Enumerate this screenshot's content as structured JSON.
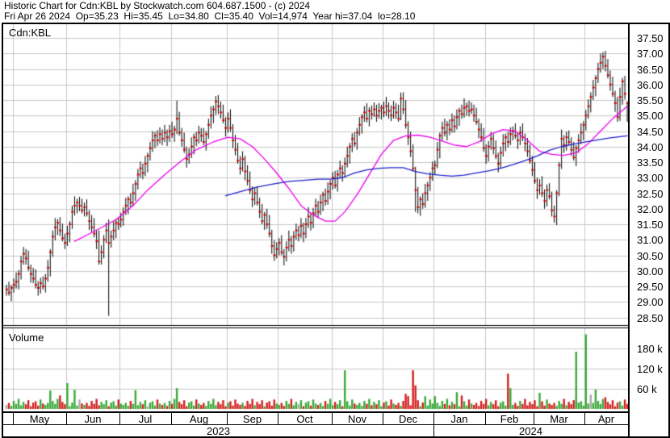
{
  "header": {
    "line1": "Historic Chart for Cdn:KBL by Stockwatch.com 604.687.1500 - (c) 2024",
    "line2": "Fri Apr 26 2024  Op=35.23  Hi=35.45  Lo=34.80  Cl=35.40  Vol=14,974  Year hi=37.04  lo=28.10"
  },
  "price_pane": {
    "symbol_label": "Cdn:KBL",
    "axis_labels": [
      "37.50",
      "37.00",
      "36.50",
      "36.00",
      "35.50",
      "35.00",
      "34.50",
      "34.00",
      "33.50",
      "33.00",
      "32.50",
      "32.00",
      "31.50",
      "31.00",
      "30.50",
      "30.00",
      "29.50",
      "29.00",
      "28.50"
    ]
  },
  "volume_pane": {
    "label": "Volume",
    "axis_labels": [
      "180 k",
      "120 k",
      "60 k"
    ]
  },
  "x_axis": {
    "months": [
      "May",
      "Jun",
      "Jul",
      "Aug",
      "Sep",
      "Oct",
      "Nov",
      "Dec",
      "Jan",
      "Feb",
      "Mar",
      "Apr"
    ],
    "years": [
      "2023",
      "2024"
    ]
  },
  "colors": {
    "bar": "#000000",
    "close_tick": "#dd0000",
    "ma_fast": "#ee00ee",
    "ma_slow": "#2020cc",
    "vol_up": "#3aaa3a",
    "vol_down": "#d42020",
    "vol_flat": "#aaaaaa",
    "grid": "#c8c8c8",
    "border": "#000000",
    "background": "#ffffff"
  },
  "chart_data": {
    "type": "bar",
    "subtype": "hlc-price-bars-with-volume",
    "symbol": "Cdn:KBL",
    "title": "Historic Chart for Cdn:KBL by Stockwatch.com 604.687.1500 - (c) 2024",
    "last_day": {
      "date": "Fri Apr 26 2024",
      "open": 35.23,
      "high": 35.45,
      "low": 34.8,
      "close": 35.4,
      "volume": 14974,
      "year_high": 37.04,
      "year_low": 28.1
    },
    "price_axis": {
      "min": 28.5,
      "max": 37.5,
      "step": 0.5
    },
    "volume_axis_ticks_k": [
      60,
      120,
      180
    ],
    "month_start_indices": [
      3,
      25,
      47,
      68,
      91,
      112,
      134,
      155,
      176,
      197,
      217,
      238
    ],
    "year_split_month": 8,
    "closes": [
      29.4,
      29.3,
      29.45,
      29.55,
      29.65,
      29.9,
      30.3,
      30.55,
      30.4,
      30.1,
      29.9,
      29.75,
      29.55,
      29.45,
      29.6,
      29.5,
      29.75,
      30.1,
      30.6,
      31.1,
      31.4,
      31.55,
      31.3,
      31.05,
      30.9,
      31.2,
      31.5,
      31.9,
      32.1,
      32.2,
      32.1,
      31.95,
      32.05,
      31.85,
      31.6,
      31.4,
      31.2,
      30.95,
      30.3,
      30.6,
      31.0,
      31.3,
      30.9,
      31.1,
      31.3,
      31.55,
      31.5,
      31.65,
      31.9,
      32.1,
      32.3,
      32.2,
      32.5,
      32.8,
      33.1,
      33.3,
      33.15,
      33.45,
      33.7,
      33.95,
      34.2,
      34.35,
      34.2,
      34.4,
      34.25,
      34.45,
      34.3,
      34.5,
      34.4,
      34.55,
      34.9,
      34.45,
      34.2,
      33.9,
      33.6,
      33.75,
      34.0,
      34.3,
      34.2,
      34.45,
      34.35,
      34.15,
      34.4,
      34.7,
      35.0,
      35.2,
      35.45,
      35.3,
      35.1,
      34.85,
      34.6,
      34.9,
      34.6,
      34.2,
      33.9,
      33.55,
      33.3,
      33.6,
      33.2,
      32.9,
      32.6,
      32.3,
      32.5,
      32.2,
      31.9,
      31.6,
      31.8,
      31.5,
      31.2,
      30.8,
      30.5,
      30.7,
      30.9,
      30.6,
      30.45,
      30.75,
      31.0,
      30.8,
      31.1,
      31.3,
      31.15,
      31.45,
      31.2,
      31.5,
      31.75,
      31.55,
      31.85,
      32.1,
      31.9,
      32.2,
      32.45,
      32.25,
      32.55,
      32.8,
      33.0,
      32.75,
      33.1,
      33.3,
      33.15,
      33.45,
      33.7,
      34.0,
      34.25,
      34.1,
      34.45,
      34.7,
      34.95,
      35.1,
      34.9,
      35.15,
      35.05,
      35.2,
      35.0,
      35.15,
      35.25,
      35.1,
      35.3,
      35.15,
      35.0,
      35.25,
      35.1,
      34.9,
      35.55,
      35.2,
      34.7,
      34.3,
      33.85,
      33.3,
      32.6,
      32.05,
      32.3,
      32.15,
      32.5,
      32.75,
      33.0,
      33.3,
      33.4,
      33.9,
      34.35,
      34.6,
      34.45,
      34.7,
      34.55,
      34.85,
      34.65,
      34.95,
      35.15,
      35.05,
      35.25,
      35.3,
      35.15,
      35.2,
      35.0,
      34.8,
      34.55,
      34.3,
      33.95,
      33.7,
      34.0,
      34.25,
      33.95,
      33.7,
      33.45,
      33.8,
      34.1,
      34.3,
      34.15,
      34.4,
      34.5,
      34.35,
      34.2,
      34.45,
      34.3,
      34.1,
      33.85,
      33.55,
      33.25,
      32.9,
      32.6,
      32.75,
      32.5,
      32.25,
      32.6,
      32.4,
      31.95,
      31.75,
      32.5,
      33.4,
      34.25,
      34.05,
      34.3,
      34.15,
      33.9,
      33.65,
      33.95,
      34.2,
      34.45,
      34.7,
      35.0,
      35.3,
      35.6,
      35.9,
      36.2,
      36.5,
      36.7,
      36.9,
      36.6,
      36.3,
      36.0,
      35.7,
      35.4,
      34.95,
      35.6,
      36.1,
      35.7,
      35.4
    ],
    "special_bars": {
      "38": [
        31.1,
        31.3,
        30.2,
        30.3
      ],
      "42": [
        31.3,
        31.65,
        28.55,
        30.9
      ],
      "70": [
        34.55,
        35.48,
        34.4,
        34.9
      ],
      "87": [
        35.45,
        35.66,
        35.05,
        35.3
      ],
      "162": [
        34.9,
        35.74,
        34.85,
        35.55
      ],
      "168": [
        33.3,
        33.35,
        31.9,
        32.6
      ],
      "169": [
        32.6,
        32.7,
        31.85,
        32.05
      ],
      "225": [
        31.95,
        32.1,
        31.55,
        31.75
      ],
      "227": [
        32.5,
        33.5,
        32.4,
        33.4
      ],
      "245": [
        36.7,
        37.04,
        36.5,
        36.9
      ],
      "255": [
        35.23,
        35.45,
        34.8,
        35.4
      ]
    },
    "wick_up_pattern": [
      0.15,
      0.25,
      0.1,
      0.2,
      0.3,
      0.12,
      0.18,
      0.22
    ],
    "wick_down_pattern": [
      0.2,
      0.1,
      0.28,
      0.15,
      0.12,
      0.25,
      0.18,
      0.1
    ],
    "volume_base_pattern_k": [
      12,
      18,
      9,
      24,
      15,
      30,
      11,
      21,
      14,
      26,
      8,
      19,
      23,
      10,
      28,
      16
    ],
    "volume_spikes_k": {
      "18": 55,
      "22": 40,
      "25": 77,
      "28": 57,
      "53": 56,
      "70": 62,
      "139": 115,
      "164": 45,
      "165": 38,
      "167": 115,
      "168": 70,
      "172": 38,
      "176": 38,
      "185": 50,
      "187": 40,
      "206": 105,
      "207": 62,
      "219": 48,
      "234": 170,
      "238": 222,
      "240": 43,
      "242": 58,
      "246": 35,
      "255": 15
    },
    "volume_flat_indices": [
      30,
      58,
      120,
      240
    ],
    "ma_fast_points": [
      [
        28,
        30.95
      ],
      [
        33,
        31.15
      ],
      [
        38,
        31.35
      ],
      [
        45,
        31.65
      ],
      [
        52,
        32.1
      ],
      [
        58,
        32.6
      ],
      [
        65,
        33.1
      ],
      [
        72,
        33.55
      ],
      [
        78,
        33.9
      ],
      [
        85,
        34.15
      ],
      [
        91,
        34.3
      ],
      [
        96,
        34.25
      ],
      [
        101,
        34.0
      ],
      [
        106,
        33.6
      ],
      [
        111,
        33.15
      ],
      [
        116,
        32.65
      ],
      [
        121,
        32.1
      ],
      [
        126,
        31.8
      ],
      [
        131,
        31.6
      ],
      [
        135,
        31.6
      ],
      [
        139,
        31.9
      ],
      [
        144,
        32.45
      ],
      [
        149,
        33.1
      ],
      [
        154,
        33.75
      ],
      [
        159,
        34.2
      ],
      [
        164,
        34.35
      ],
      [
        169,
        34.37
      ],
      [
        174,
        34.3
      ],
      [
        179,
        34.18
      ],
      [
        184,
        34.05
      ],
      [
        189,
        34.0
      ],
      [
        194,
        34.15
      ],
      [
        199,
        34.4
      ],
      [
        204,
        34.55
      ],
      [
        209,
        34.5
      ],
      [
        214,
        34.2
      ],
      [
        219,
        33.85
      ],
      [
        224,
        33.75
      ],
      [
        229,
        33.72
      ],
      [
        234,
        33.8
      ],
      [
        239,
        34.1
      ],
      [
        244,
        34.5
      ],
      [
        249,
        34.9
      ],
      [
        255,
        35.3
      ]
    ],
    "ma_slow_points": [
      [
        90,
        32.42
      ],
      [
        96,
        32.55
      ],
      [
        103,
        32.7
      ],
      [
        110,
        32.8
      ],
      [
        116,
        32.88
      ],
      [
        123,
        32.92
      ],
      [
        128,
        32.95
      ],
      [
        133,
        32.95
      ],
      [
        138,
        33.0
      ],
      [
        143,
        33.15
      ],
      [
        148,
        33.25
      ],
      [
        153,
        33.3
      ],
      [
        158,
        33.32
      ],
      [
        163,
        33.32
      ],
      [
        168,
        33.2
      ],
      [
        173,
        33.12
      ],
      [
        178,
        33.08
      ],
      [
        183,
        33.05
      ],
      [
        188,
        33.08
      ],
      [
        193,
        33.15
      ],
      [
        198,
        33.22
      ],
      [
        203,
        33.3
      ],
      [
        208,
        33.42
      ],
      [
        213,
        33.55
      ],
      [
        218,
        33.7
      ],
      [
        223,
        33.88
      ],
      [
        228,
        34.0
      ],
      [
        233,
        34.08
      ],
      [
        238,
        34.15
      ],
      [
        243,
        34.22
      ],
      [
        248,
        34.28
      ],
      [
        255,
        34.35
      ]
    ]
  }
}
